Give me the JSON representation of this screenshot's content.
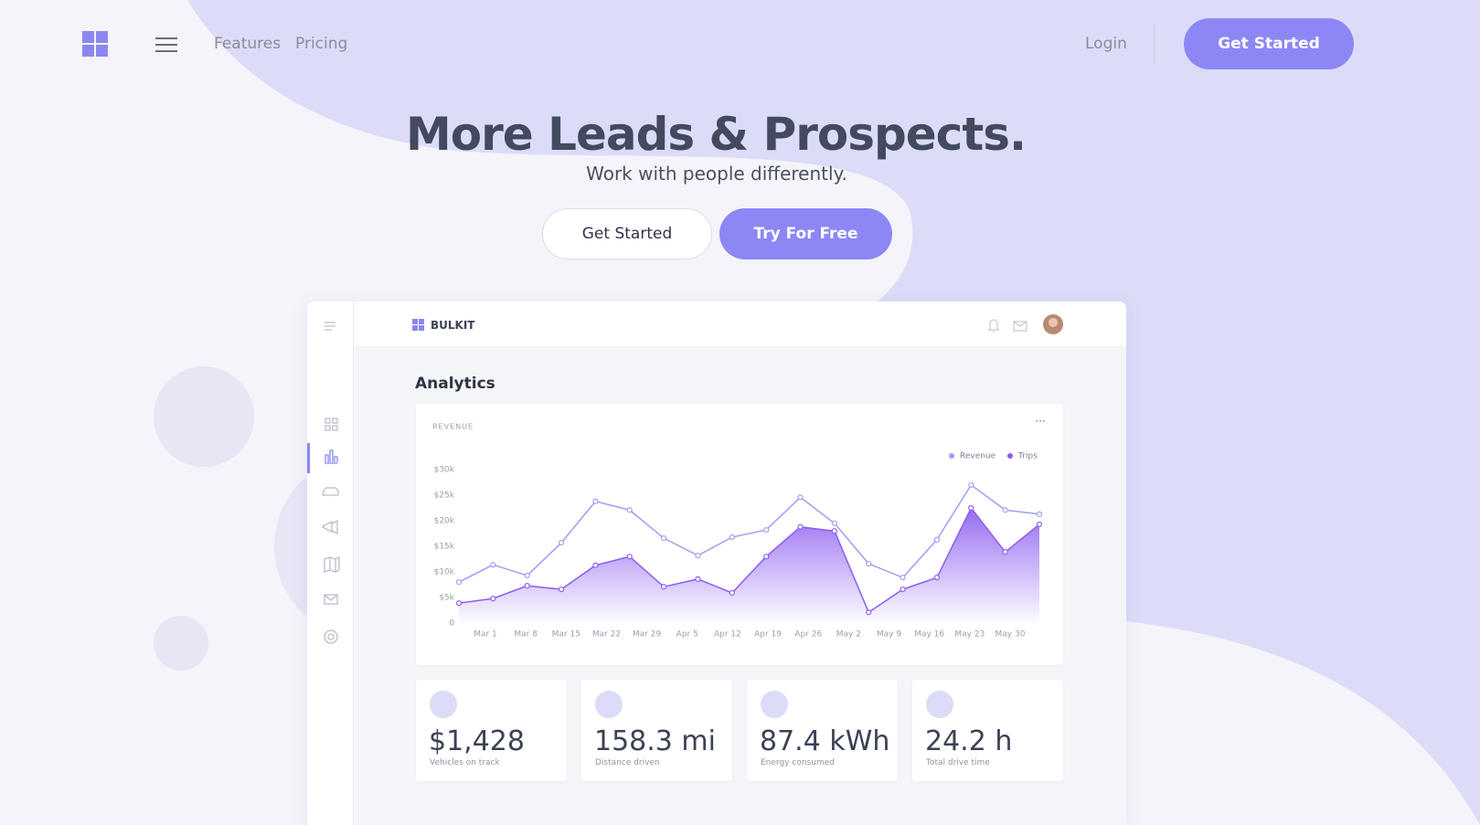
{
  "nav": {
    "links": [
      "Features",
      "Pricing"
    ],
    "login": "Login",
    "cta": "Get Started"
  },
  "hero": {
    "title": "More Leads & Prospects.",
    "subtitle": "Work with people differently.",
    "buttons": [
      "Get Started",
      "Try For Free"
    ]
  },
  "dashboard": {
    "brand": "BULKIT",
    "heading": "Analytics",
    "chart": {
      "type": "line",
      "title": "REVENUE",
      "xtick_labels": [
        "Mar 1",
        "Mar 8",
        "Mar 15",
        "Mar 22",
        "Mar 29",
        "Apr 5",
        "Apr 12",
        "Apr 19",
        "Apr 26",
        "May 2",
        "May 9",
        "May 16",
        "May 23",
        "May 30"
      ],
      "series": [
        {
          "name": "Revenue",
          "color": "#a29cf6",
          "values": [
            8000,
            11400,
            9300,
            15700,
            23800,
            22100,
            16600,
            13200,
            16800,
            18200,
            24600,
            19500,
            11600,
            8900,
            16300,
            27000,
            22100,
            21300
          ]
        },
        {
          "name": "Trips",
          "color": "#8b5cf0",
          "fill": true,
          "values": [
            3900,
            4800,
            7300,
            6600,
            11300,
            13000,
            7100,
            8600,
            5900,
            13000,
            18800,
            18000,
            2100,
            6600,
            8900,
            22500,
            13900,
            19300
          ]
        }
      ],
      "ylim": [
        0,
        30000
      ],
      "yticks": [
        0,
        {
          "value": 5000,
          "label": "$5k"
        },
        {
          "value": 10000,
          "label": "$10k"
        },
        {
          "value": 15000,
          "label": "$15k"
        },
        {
          "value": 20000,
          "label": "$20k"
        },
        {
          "value": 25000,
          "label": "$25k"
        },
        {
          "value": 30000,
          "label": "$30k"
        }
      ]
    },
    "stats": [
      {
        "value": "$1,428",
        "label": "Vehicles on track"
      },
      {
        "value": "158.3 mi",
        "label": "Distance driven"
      },
      {
        "value": "87.4 kWh",
        "label": "Energy consumed"
      },
      {
        "value": "24.2 h",
        "label": "Total drive time"
      }
    ]
  }
}
